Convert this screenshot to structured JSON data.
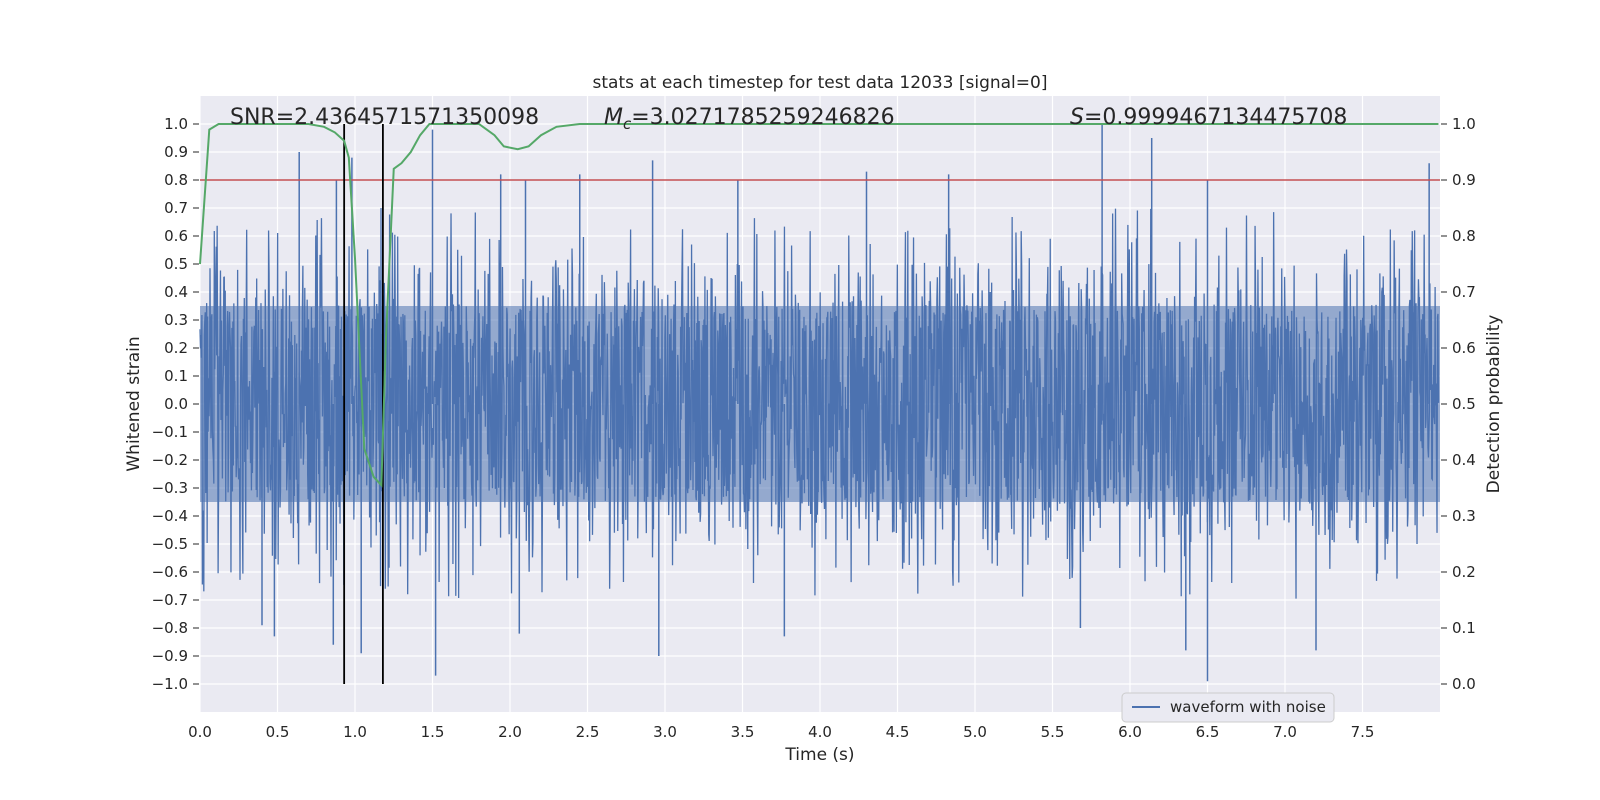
{
  "chart_data": {
    "type": "line",
    "title": "stats at each timestep for test data 12033 [signal=0]",
    "xlabel": "Time (s)",
    "ylabel_left": "Whitened strain",
    "ylabel_right": "Detection probability",
    "xlim": [
      0.0,
      8.0
    ],
    "ylim_left": [
      -1.1,
      1.1
    ],
    "ylim_right": [
      -0.05,
      1.05
    ],
    "grid": true,
    "x_ticks": [
      0.0,
      0.5,
      1.0,
      1.5,
      2.0,
      2.5,
      3.0,
      3.5,
      4.0,
      4.5,
      5.0,
      5.5,
      6.0,
      6.5,
      7.0,
      7.5
    ],
    "x_tick_labels": [
      "0.0",
      "0.5",
      "1.0",
      "1.5",
      "2.0",
      "2.5",
      "3.0",
      "3.5",
      "4.0",
      "4.5",
      "5.0",
      "5.5",
      "6.0",
      "6.5",
      "7.0",
      "7.5"
    ],
    "y_left_ticks": [
      1.0,
      0.9,
      0.8,
      0.7,
      0.6,
      0.5,
      0.4,
      0.3,
      0.2,
      0.1,
      0.0,
      -0.1,
      -0.2,
      -0.3,
      -0.4,
      -0.5,
      -0.6,
      -0.7,
      -0.8,
      -0.9,
      -1.0
    ],
    "y_left_tick_labels": [
      "1.0",
      "0.9",
      "0.8",
      "0.7",
      "0.6",
      "0.5",
      "0.4",
      "0.3",
      "0.2",
      "0.1",
      "0.0",
      "−0.1",
      "−0.2",
      "−0.3",
      "−0.4",
      "−0.5",
      "−0.6",
      "−0.7",
      "−0.8",
      "−0.9",
      "−1.0"
    ],
    "y_right_ticks": [
      1.0,
      0.9,
      0.8,
      0.7,
      0.6,
      0.5,
      0.4,
      0.3,
      0.2,
      0.1,
      0.0
    ],
    "y_right_tick_labels": [
      "1.0",
      "0.9",
      "0.8",
      "0.7",
      "0.6",
      "0.5",
      "0.4",
      "0.3",
      "0.2",
      "0.1",
      "0.0"
    ],
    "annotations": {
      "snr": "SNR=2.4364571571350098",
      "mc_symbol": "M",
      "mc_sub": "c",
      "mc_value": "=3.0271785259246826",
      "s_symbol": "S",
      "s_value": "=0.9999467134475708"
    },
    "series": [
      {
        "name": "waveform with noise",
        "axis": "left",
        "color": "#4c72b0",
        "description": "noise-like whitened strain over full time range",
        "t_range": [
          0.0,
          7.99
        ],
        "dense_band": [
          -0.35,
          0.35
        ],
        "peaks": [
          [
            0.64,
            0.9
          ],
          [
            0.88,
            0.8
          ],
          [
            0.98,
            0.88
          ],
          [
            1.5,
            0.98
          ],
          [
            1.94,
            0.82
          ],
          [
            2.1,
            0.8
          ],
          [
            2.45,
            0.82
          ],
          [
            2.92,
            0.87
          ],
          [
            3.47,
            0.8
          ],
          [
            4.3,
            0.83
          ],
          [
            4.83,
            0.82
          ],
          [
            5.82,
            1.0
          ],
          [
            6.14,
            0.95
          ],
          [
            6.5,
            0.8
          ],
          [
            7.93,
            0.86
          ]
        ],
        "troughs": [
          [
            0.4,
            -0.79
          ],
          [
            0.48,
            -0.83
          ],
          [
            0.86,
            -0.86
          ],
          [
            1.04,
            -0.89
          ],
          [
            1.52,
            -0.97
          ],
          [
            2.06,
            -0.82
          ],
          [
            2.96,
            -0.9
          ],
          [
            3.77,
            -0.83
          ],
          [
            5.68,
            -0.8
          ],
          [
            6.36,
            -0.88
          ],
          [
            6.5,
            -0.99
          ],
          [
            7.2,
            -0.88
          ]
        ]
      },
      {
        "name": "detection probability",
        "axis": "right",
        "color": "#55a868",
        "x": [
          0.0,
          0.06,
          0.12,
          0.2,
          0.4,
          0.6,
          0.7,
          0.8,
          0.87,
          0.93,
          0.96,
          1.0,
          1.06,
          1.12,
          1.17,
          1.2,
          1.25,
          1.3,
          1.36,
          1.42,
          1.48,
          1.55,
          1.65,
          1.8,
          1.9,
          1.96,
          2.05,
          2.12,
          2.2,
          2.3,
          2.45,
          2.6,
          3.0,
          4.0,
          5.0,
          6.0,
          7.0,
          7.99
        ],
        "y": [
          0.75,
          0.99,
          1.0,
          1.0,
          1.0,
          1.0,
          1.0,
          0.995,
          0.985,
          0.97,
          0.94,
          0.76,
          0.42,
          0.37,
          0.355,
          0.62,
          0.92,
          0.93,
          0.95,
          0.98,
          1.0,
          1.0,
          1.0,
          1.0,
          0.98,
          0.96,
          0.955,
          0.96,
          0.98,
          0.995,
          1.0,
          1.0,
          1.0,
          1.0,
          1.0,
          1.0,
          1.0,
          1.0
        ]
      }
    ],
    "threshold": {
      "axis": "right",
      "value": 0.9,
      "color": "#c44e52"
    },
    "vlines": {
      "color": "#000000",
      "x": [
        0.93,
        1.18
      ],
      "y_range_right": [
        0.0,
        1.0
      ]
    },
    "legend": {
      "position": "lower-right",
      "entries": [
        "waveform with noise"
      ]
    },
    "style": {
      "background": "#eaeaf2",
      "grid_color": "#ffffff",
      "text_color": "#262626"
    }
  }
}
